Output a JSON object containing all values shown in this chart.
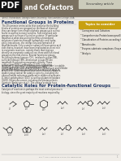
{
  "title": "and Cofactors",
  "pdf_label": "PDF",
  "secondary_article_label": "Secondary article",
  "topics_label": "Topics to consider",
  "topics_items": [
    "Coenzymes and Cofactors",
    "Comprehensive Protein/coenzyme/Energy",
    "Classification of Proteins according to their Molecular",
    "Biomolecules",
    "Enzyme-substrate complexes: Enzyme Catalysis",
    "Catalysis"
  ],
  "section1_title": "Functional Groups in Proteins",
  "section2_title": "Catalytic Roles for Protein-functional Groups",
  "page_background": "#f0ede8",
  "pdf_bg": "#111111",
  "pdf_text": "#ffffff",
  "header_stripe_color": "#7a7060",
  "sidebar_bg": "#e8e4dc",
  "sidebar_border": "#999990",
  "topics_header_bg": "#c8a010",
  "topics_text": "#ffffff",
  "body_text": "#333333",
  "heading_color": "#1a3060",
  "footer_text": "#888888",
  "struct_color": "#222222"
}
